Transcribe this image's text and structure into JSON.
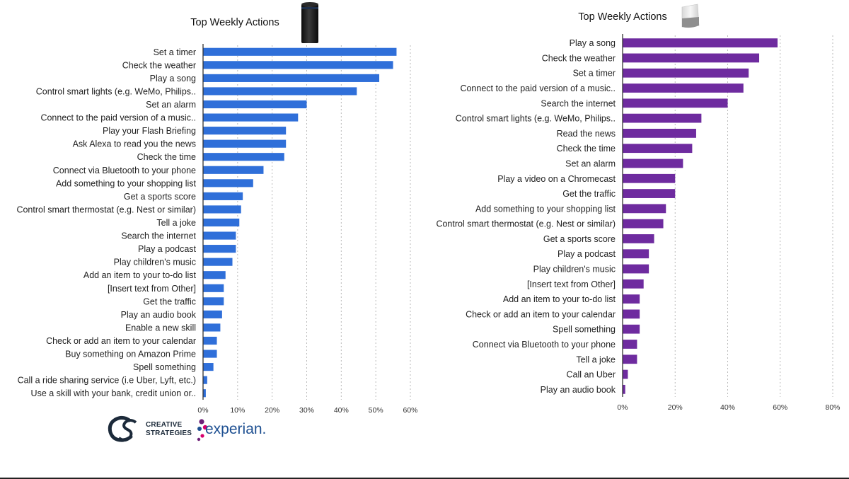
{
  "chart_data": [
    {
      "type": "bar",
      "orientation": "horizontal",
      "title": "Top Weekly Actions",
      "device_icon": "echo-speaker-icon",
      "color": "#2f6fd9",
      "grid": true,
      "xlim": [
        0,
        60
      ],
      "ticks": [
        0,
        10,
        20,
        30,
        40,
        50,
        60
      ],
      "tick_labels": [
        "0%",
        "10%",
        "20%",
        "30%",
        "40%",
        "50%",
        "60%"
      ],
      "categories": [
        "Set a timer",
        "Check the weather",
        "Play a song",
        "Control smart lights (e.g. WeMo, Philips..",
        "Set an alarm",
        "Connect to the paid version of a music..",
        "Play your Flash Briefing",
        "Ask Alexa to read you the news",
        "Check the time",
        "Connect via Bluetooth to your phone",
        "Add something to your shopping list",
        "Get a sports score",
        "Control smart thermostat (e.g. Nest or similar)",
        "Tell a joke",
        "Search the internet",
        "Play a podcast",
        "Play children's music",
        "Add an item to your to-do list",
        "[Insert text from Other]",
        "Get the traffic",
        "Play an audio book",
        "Enable a new skill",
        "Check or add an item to your calendar",
        "Buy something on Amazon Prime",
        "Spell something",
        "Call a ride sharing service (i.e Uber, Lyft, etc.)",
        "Use a skill with your bank, credit union or.."
      ],
      "values": [
        56,
        55,
        51,
        44.5,
        30,
        27.5,
        24,
        24,
        23.5,
        17.5,
        14.5,
        11.5,
        11,
        10.5,
        9.5,
        9.5,
        8.5,
        6.5,
        6,
        6,
        5.5,
        5,
        4,
        4,
        3,
        1.2,
        0.8
      ]
    },
    {
      "type": "bar",
      "orientation": "horizontal",
      "title": "Top Weekly Actions",
      "device_icon": "google-home-speaker-icon",
      "color": "#6e2b9f",
      "grid": true,
      "xlim": [
        0,
        80
      ],
      "ticks": [
        0,
        20,
        40,
        60,
        80
      ],
      "tick_labels": [
        "0%",
        "20%",
        "40%",
        "60%",
        "80%"
      ],
      "categories": [
        "Play a song",
        "Check the weather",
        "Set a timer",
        "Connect to the paid version of a music..",
        "Search the internet",
        "Control smart lights (e.g. WeMo, Philips..",
        "Read the news",
        "Check the time",
        "Set an alarm",
        "Play a video on a Chromecast",
        "Get the traffic",
        "Add something to your shopping list",
        "Control smart thermostat (e.g. Nest or similar)",
        "Get a sports score",
        "Play a podcast",
        "Play children's music",
        "[Insert text from Other]",
        "Add an item to your to-do list",
        "Check or add an item to your calendar",
        "Spell something",
        "Connect via Bluetooth to your phone",
        "Tell a joke",
        "Call an Uber",
        "Play an audio book"
      ],
      "values": [
        59,
        52,
        48,
        46,
        40,
        30,
        28,
        26.5,
        23,
        20,
        20,
        16.5,
        15.5,
        12,
        10,
        10,
        8,
        6.5,
        6.5,
        6.5,
        5.5,
        5.5,
        2,
        1
      ]
    }
  ],
  "logos": {
    "creative_strategies_line1": "CREATIVE",
    "creative_strategies_line2": "STRATEGIES",
    "experian": "experian."
  }
}
